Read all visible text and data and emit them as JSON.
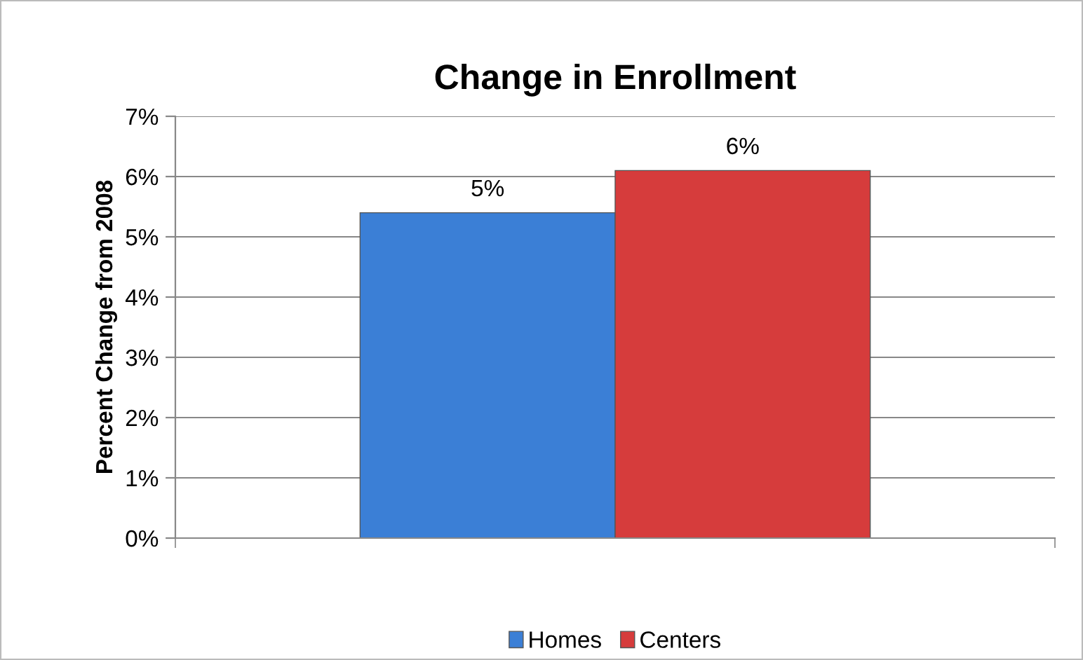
{
  "chart_data": {
    "type": "bar",
    "title": "Change in Enrollment",
    "ylabel": "Percent Change from 2008",
    "categories": [
      null
    ],
    "series": [
      {
        "name": "Homes",
        "color": "#3b7fd6",
        "values": [
          5.4
        ],
        "value_labels": [
          "5%"
        ]
      },
      {
        "name": "Centers",
        "color": "#d63c3c",
        "values": [
          6.1
        ],
        "value_labels": [
          "6%"
        ]
      }
    ],
    "ylim": [
      0,
      7
    ],
    "yticks": [
      {
        "value": 0,
        "label": "0%"
      },
      {
        "value": 1,
        "label": "1%"
      },
      {
        "value": 2,
        "label": "2%"
      },
      {
        "value": 3,
        "label": "3%"
      },
      {
        "value": 4,
        "label": "4%"
      },
      {
        "value": 5,
        "label": "5%"
      },
      {
        "value": 6,
        "label": "6%"
      },
      {
        "value": 7,
        "label": "7%"
      }
    ],
    "grid": "y",
    "legend": "bottom"
  }
}
